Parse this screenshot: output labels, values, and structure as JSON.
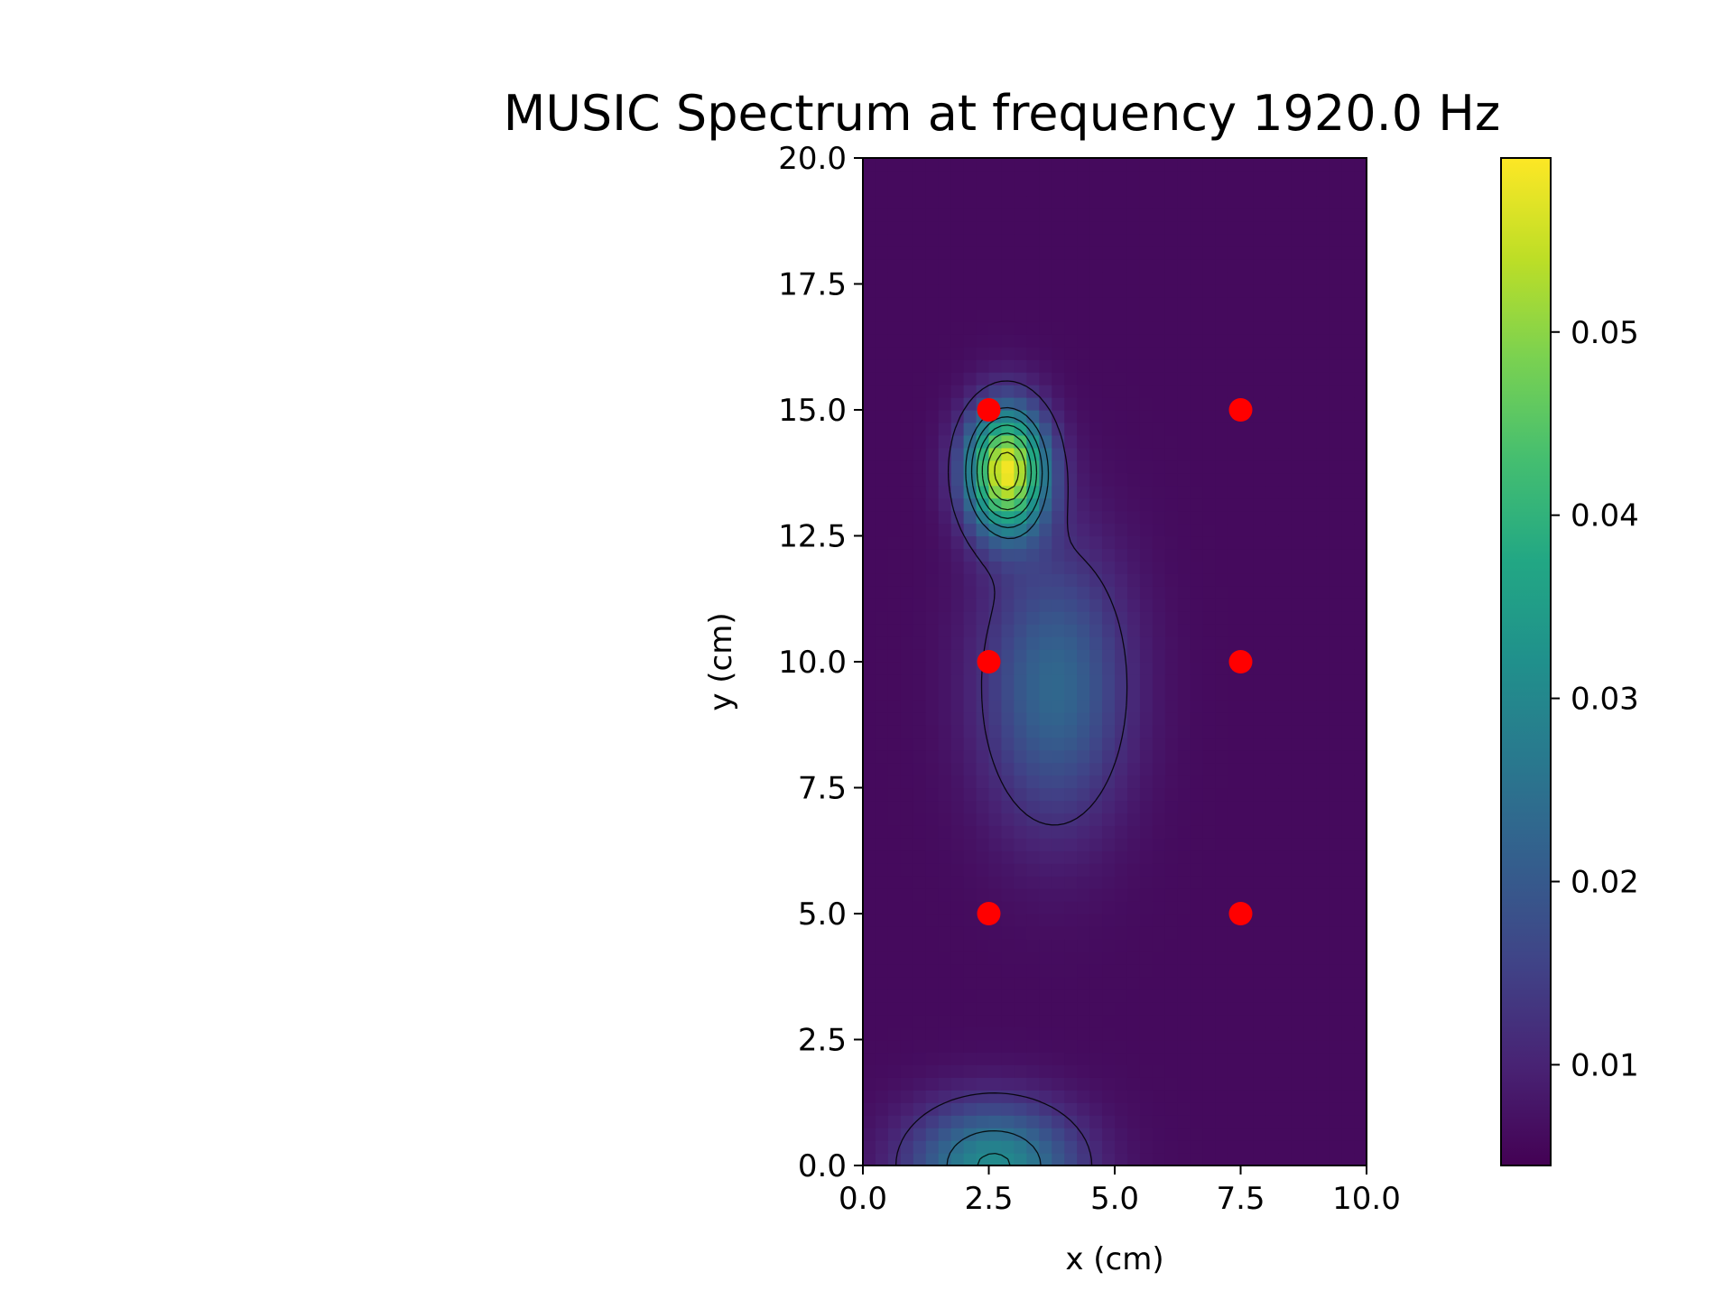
{
  "chart_data": {
    "type": "heatmap",
    "title": "MUSIC Spectrum at frequency 1920.0 Hz",
    "xlabel": "x (cm)",
    "ylabel": "y (cm)",
    "xlim": [
      0,
      10
    ],
    "ylim": [
      0,
      20
    ],
    "x_ticks": [
      "0.0",
      "2.5",
      "5.0",
      "7.5",
      "10.0"
    ],
    "y_ticks": [
      "0.0",
      "2.5",
      "5.0",
      "7.5",
      "10.0",
      "12.5",
      "15.0",
      "17.5",
      "20.0"
    ],
    "colormap": "viridis",
    "colorbar": {
      "range": [
        0.0045,
        0.0595
      ],
      "ticks": [
        "0.01",
        "0.02",
        "0.03",
        "0.04",
        "0.05"
      ]
    },
    "spectrum_peaks": [
      {
        "x": 2.85,
        "y": 13.8,
        "value": 0.058
      },
      {
        "x": 3.8,
        "y": 9.5,
        "value": 0.023
      },
      {
        "x": 2.6,
        "y": 0.0,
        "value": 0.031
      }
    ],
    "background_level": 0.006,
    "contours": true,
    "markers": {
      "color": "#ff0000",
      "points": [
        {
          "x": 2.5,
          "y": 15.0
        },
        {
          "x": 7.5,
          "y": 15.0
        },
        {
          "x": 2.5,
          "y": 10.0
        },
        {
          "x": 7.5,
          "y": 10.0
        },
        {
          "x": 2.5,
          "y": 5.0
        },
        {
          "x": 7.5,
          "y": 5.0
        }
      ]
    }
  }
}
